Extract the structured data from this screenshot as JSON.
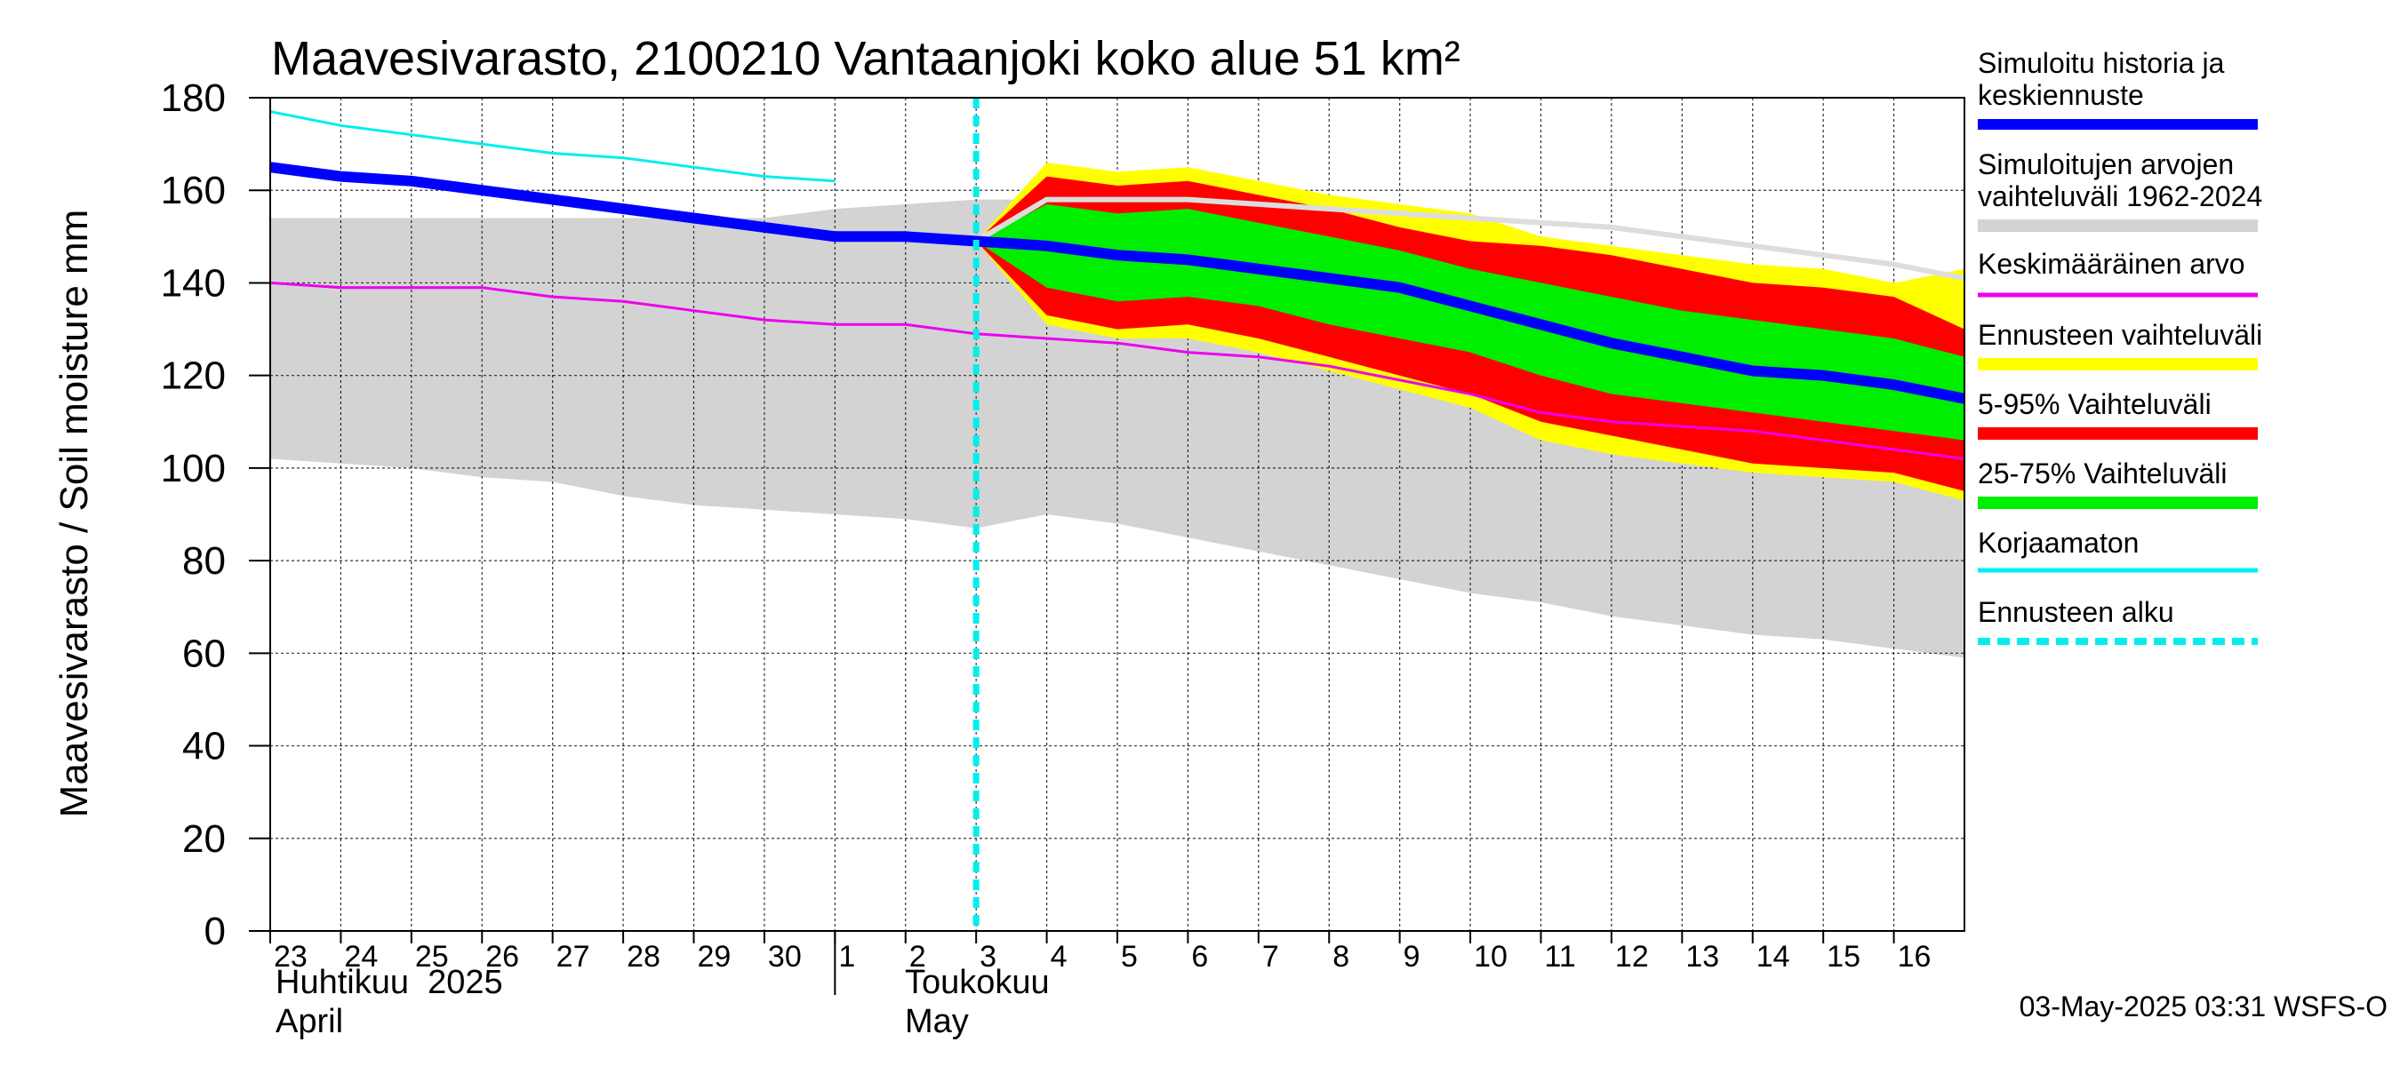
{
  "chart_data": {
    "type": "area",
    "title": "Maavesivarasto, 2100210 Vantaanjoki koko alue 51 km²",
    "ylabel": "Maavesivarasto / Soil moisture   mm",
    "ylim": [
      0,
      180
    ],
    "yticks": [
      0,
      20,
      40,
      60,
      80,
      100,
      120,
      140,
      160,
      180
    ],
    "xlim": [
      0,
      24
    ],
    "x_tick_labels": [
      "23",
      "24",
      "25",
      "26",
      "27",
      "28",
      "29",
      "30",
      "1",
      "2",
      "3",
      "4",
      "5",
      "6",
      "7",
      "8",
      "9",
      "10",
      "11",
      "12",
      "13",
      "14",
      "15",
      "16"
    ],
    "month_labels": [
      {
        "fi": "Huhtikuu  2025",
        "en": "April"
      },
      {
        "fi": "Toukokuu",
        "en": "May"
      }
    ],
    "forecast_start": 10,
    "timestamp": "03-May-2025 03:31 WSFS-O",
    "legend": [
      {
        "label": "Simuloitu historia ja keskiennuste",
        "color": "#0000ff",
        "style": "thick"
      },
      {
        "label": "Simuloitujen arvojen vaihteluväli 1962-2024",
        "color": "#d3d3d3",
        "style": "band"
      },
      {
        "label": "Keskimääräinen arvo",
        "color": "#ee00ee",
        "style": "line"
      },
      {
        "label": "Ennusteen vaihteluväli",
        "color": "#ffff00",
        "style": "band"
      },
      {
        "label": "5-95% Vaihteluväli",
        "color": "#ff0000",
        "style": "band"
      },
      {
        "label": "25-75% Vaihteluväli",
        "color": "#00ee00",
        "style": "band"
      },
      {
        "label": "Korjaamaton",
        "color": "#00eeee",
        "style": "line"
      },
      {
        "label": "Ennusteen alku",
        "color": "#00eeee",
        "style": "dashed"
      }
    ],
    "series": {
      "hist_range": {
        "x": [
          0,
          1,
          2,
          3,
          4,
          5,
          6,
          7,
          8,
          9,
          10,
          11,
          12,
          13,
          14,
          15,
          16,
          17,
          18,
          19,
          20,
          21,
          22,
          23,
          24
        ],
        "lower": [
          102,
          101,
          100,
          98,
          97,
          94,
          92,
          91,
          90,
          89,
          87,
          90,
          88,
          85,
          82,
          79,
          76,
          73,
          71,
          68,
          66,
          64,
          63,
          61,
          59
        ],
        "upper": [
          154,
          154,
          154,
          154,
          154,
          154,
          154,
          154,
          156,
          157,
          158,
          158,
          157,
          156,
          155,
          153,
          152,
          150,
          149,
          147,
          145,
          143,
          142,
          140,
          138
        ]
      },
      "forecast_full": {
        "x": [
          10,
          11,
          12,
          13,
          14,
          15,
          16,
          17,
          18,
          19,
          20,
          21,
          22,
          23,
          24
        ],
        "lower": [
          149,
          131,
          128,
          128,
          125,
          121,
          117,
          113,
          106,
          103,
          101,
          99,
          98,
          97,
          93
        ],
        "upper": [
          149,
          166,
          164,
          165,
          162,
          159,
          157,
          155,
          150,
          148,
          146,
          144,
          143,
          140,
          143
        ]
      },
      "forecast_p5_95": {
        "x": [
          10,
          11,
          12,
          13,
          14,
          15,
          16,
          17,
          18,
          19,
          20,
          21,
          22,
          23,
          24
        ],
        "lower": [
          149,
          133,
          130,
          131,
          128,
          124,
          120,
          116,
          110,
          107,
          104,
          101,
          100,
          99,
          95
        ],
        "upper": [
          149,
          163,
          161,
          162,
          159,
          156,
          152,
          149,
          148,
          146,
          143,
          140,
          139,
          137,
          130
        ]
      },
      "forecast_p25_75": {
        "x": [
          10,
          11,
          12,
          13,
          14,
          15,
          16,
          17,
          18,
          19,
          20,
          21,
          22,
          23,
          24
        ],
        "lower": [
          149,
          139,
          136,
          137,
          135,
          131,
          128,
          125,
          120,
          116,
          114,
          112,
          110,
          108,
          106
        ],
        "upper": [
          149,
          157,
          155,
          156,
          153,
          150,
          147,
          143,
          140,
          137,
          134,
          132,
          130,
          128,
          124
        ]
      },
      "median_grey": {
        "x": [
          10,
          11,
          12,
          13,
          14,
          15,
          16,
          17,
          18,
          19,
          20,
          21,
          22,
          23,
          24
        ],
        "values": [
          149,
          158,
          158,
          158,
          157,
          156,
          155,
          154,
          153,
          152,
          150,
          148,
          146,
          144,
          141
        ]
      },
      "main": {
        "x": [
          0,
          1,
          2,
          3,
          4,
          5,
          6,
          7,
          8,
          9,
          10,
          11,
          12,
          13,
          14,
          15,
          16,
          17,
          18,
          19,
          20,
          21,
          22,
          23,
          24
        ],
        "values": [
          165,
          163,
          162,
          160,
          158,
          156,
          154,
          152,
          150,
          150,
          149,
          148,
          146,
          145,
          143,
          141,
          139,
          135,
          131,
          127,
          124,
          121,
          120,
          118,
          115
        ]
      },
      "mean": {
        "x": [
          0,
          1,
          2,
          3,
          4,
          5,
          6,
          7,
          8,
          9,
          10,
          11,
          12,
          13,
          14,
          15,
          16,
          17,
          18,
          19,
          20,
          21,
          22,
          23,
          24
        ],
        "values": [
          140,
          139,
          139,
          139,
          137,
          136,
          134,
          132,
          131,
          131,
          129,
          128,
          127,
          125,
          124,
          122,
          119,
          116,
          112,
          110,
          109,
          108,
          106,
          104,
          102
        ]
      },
      "uncorrected": {
        "x": [
          0,
          1,
          2,
          3,
          4,
          5,
          6,
          7,
          8
        ],
        "values": [
          177,
          174,
          172,
          170,
          168,
          167,
          165,
          163,
          162
        ]
      }
    }
  }
}
